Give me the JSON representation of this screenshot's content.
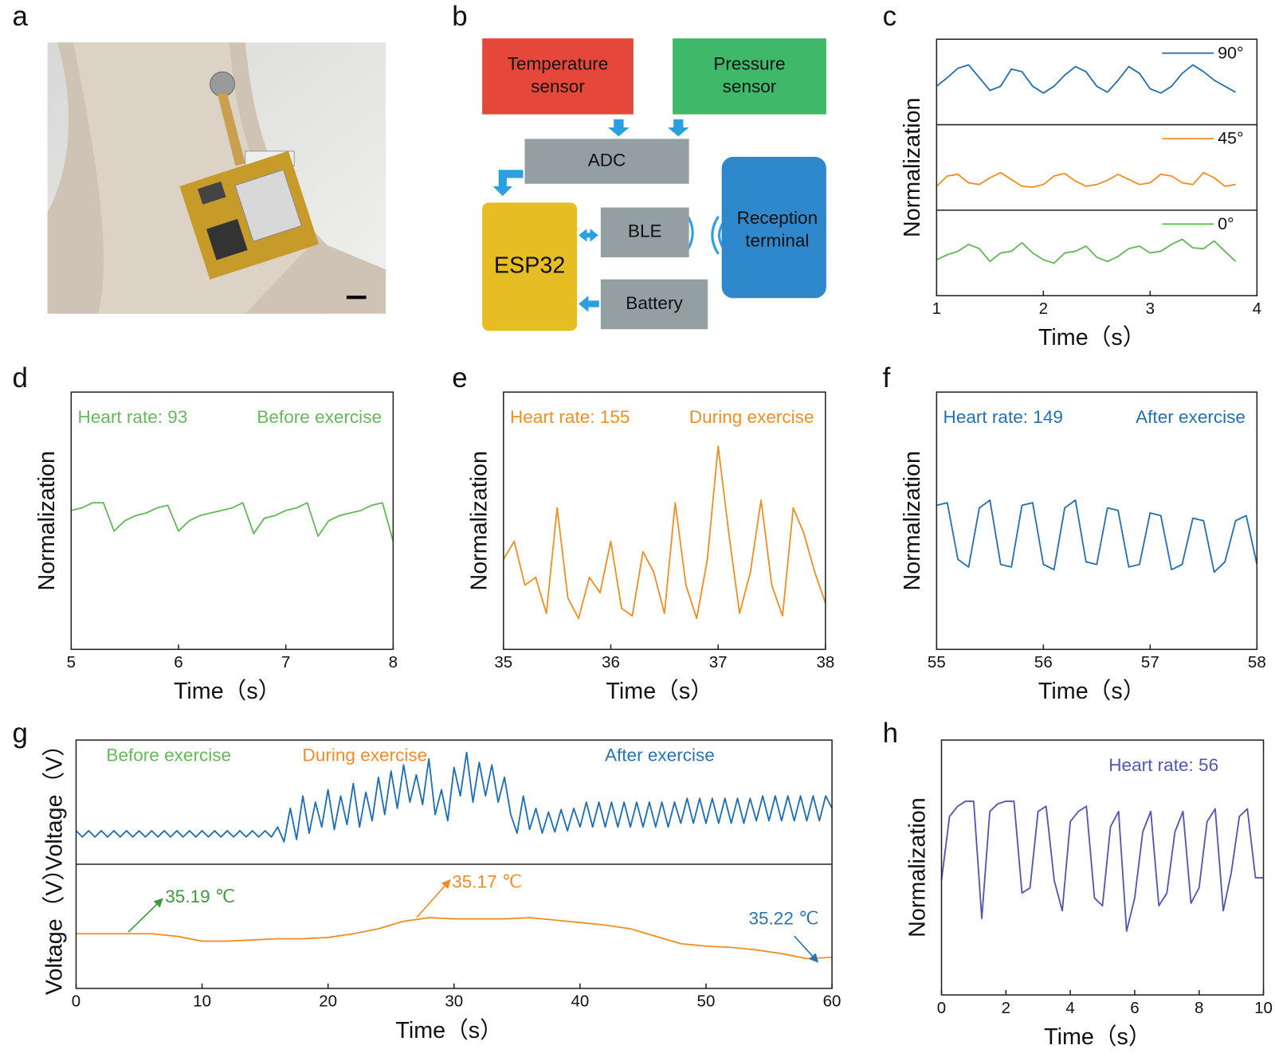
{
  "panel_labels": [
    "a",
    "b",
    "c",
    "d",
    "e",
    "f",
    "g",
    "h"
  ],
  "diagram": {
    "nodes": [
      {
        "lines": [
          "Temperature",
          "sensor"
        ]
      },
      {
        "lines": [
          "Pressure",
          "sensor"
        ]
      },
      {
        "lines": [
          "ADC"
        ]
      },
      {
        "lines": [
          "ESP32"
        ]
      },
      {
        "lines": [
          "BLE"
        ]
      },
      {
        "lines": [
          "Battery"
        ]
      },
      {
        "lines": [
          "Reception",
          "terminal"
        ]
      }
    ]
  },
  "chart_data": [
    {
      "type": "line",
      "ylabel": "Normalization",
      "xlabel": "Time（s）",
      "xlim": [
        1,
        4
      ],
      "xticks": [
        1,
        2,
        3,
        4
      ],
      "legend": true,
      "x": [
        1.0,
        1.1,
        1.2,
        1.3,
        1.4,
        1.5,
        1.6,
        1.7,
        1.8,
        1.9,
        2.0,
        2.1,
        2.2,
        2.3,
        2.4,
        2.5,
        2.6,
        2.7,
        2.8,
        2.9,
        3.0,
        3.1,
        3.2,
        3.3,
        3.4,
        3.5,
        3.6,
        3.7,
        3.8
      ],
      "series": [
        {
          "name": "90°",
          "color": "#2572b2",
          "ylim": [
            0,
            1
          ],
          "values": [
            0.45,
            0.55,
            0.66,
            0.7,
            0.55,
            0.4,
            0.45,
            0.65,
            0.62,
            0.45,
            0.37,
            0.45,
            0.58,
            0.68,
            0.62,
            0.45,
            0.38,
            0.52,
            0.68,
            0.6,
            0.42,
            0.37,
            0.45,
            0.6,
            0.7,
            0.62,
            0.52,
            0.45,
            0.38
          ]
        },
        {
          "name": "45°",
          "color": "#ef8f25",
          "ylim": [
            0,
            1
          ],
          "values": [
            0.28,
            0.4,
            0.42,
            0.32,
            0.3,
            0.38,
            0.44,
            0.36,
            0.28,
            0.27,
            0.3,
            0.4,
            0.43,
            0.34,
            0.28,
            0.3,
            0.35,
            0.42,
            0.36,
            0.3,
            0.32,
            0.42,
            0.4,
            0.32,
            0.3,
            0.44,
            0.38,
            0.28,
            0.3
          ]
        },
        {
          "name": "0°",
          "color": "#66b85c",
          "ylim": [
            0,
            1
          ],
          "values": [
            0.42,
            0.48,
            0.52,
            0.6,
            0.55,
            0.4,
            0.5,
            0.52,
            0.62,
            0.5,
            0.42,
            0.38,
            0.5,
            0.52,
            0.58,
            0.45,
            0.4,
            0.46,
            0.55,
            0.58,
            0.5,
            0.52,
            0.6,
            0.66,
            0.56,
            0.55,
            0.64,
            0.52,
            0.4
          ]
        }
      ]
    },
    {
      "type": "line",
      "ylabel": "Normalization",
      "xlabel": "Time（s）",
      "xlim": [
        5,
        8
      ],
      "xticks": [
        5,
        6,
        7,
        8
      ],
      "ylim": [
        0,
        1
      ],
      "annotations": [
        "Heart rate: 93",
        "Before exercise"
      ],
      "x": [
        5.0,
        5.1,
        5.2,
        5.3,
        5.4,
        5.5,
        5.6,
        5.7,
        5.8,
        5.9,
        6.0,
        6.1,
        6.2,
        6.3,
        6.4,
        6.5,
        6.6,
        6.7,
        6.8,
        6.9,
        7.0,
        7.1,
        7.2,
        7.3,
        7.4,
        7.5,
        7.6,
        7.7,
        7.8,
        7.9,
        8.0
      ],
      "series": [
        {
          "color": "#66b85c",
          "values": [
            0.54,
            0.55,
            0.57,
            0.57,
            0.46,
            0.5,
            0.52,
            0.53,
            0.55,
            0.56,
            0.46,
            0.5,
            0.52,
            0.53,
            0.54,
            0.55,
            0.57,
            0.45,
            0.51,
            0.52,
            0.54,
            0.55,
            0.57,
            0.44,
            0.5,
            0.52,
            0.53,
            0.54,
            0.56,
            0.57,
            0.42
          ]
        }
      ]
    },
    {
      "type": "line",
      "ylabel": "Normalization",
      "xlabel": "Time（s）",
      "xlim": [
        35,
        38
      ],
      "xticks": [
        35,
        36,
        37,
        38
      ],
      "ylim": [
        0,
        1
      ],
      "annotations": [
        "Heart rate: 155",
        "During exercise"
      ],
      "x": [
        35.0,
        35.1,
        35.2,
        35.3,
        35.4,
        35.5,
        35.6,
        35.7,
        35.8,
        35.9,
        36.0,
        36.1,
        36.2,
        36.3,
        36.4,
        36.5,
        36.6,
        36.7,
        36.8,
        36.9,
        37.0,
        37.1,
        37.2,
        37.3,
        37.4,
        37.5,
        37.6,
        37.7,
        37.8,
        37.9,
        38.0
      ],
      "series": [
        {
          "color": "#ef8f25",
          "values": [
            0.35,
            0.42,
            0.25,
            0.28,
            0.14,
            0.55,
            0.2,
            0.12,
            0.28,
            0.22,
            0.42,
            0.16,
            0.13,
            0.38,
            0.3,
            0.14,
            0.57,
            0.25,
            0.12,
            0.35,
            0.79,
            0.45,
            0.14,
            0.3,
            0.58,
            0.25,
            0.13,
            0.55,
            0.45,
            0.3,
            0.18
          ]
        }
      ]
    },
    {
      "type": "line",
      "ylabel": "Normalization",
      "xlabel": "Time（s）",
      "xlim": [
        55,
        58
      ],
      "xticks": [
        55,
        56,
        57,
        58
      ],
      "ylim": [
        0,
        1
      ],
      "annotations": [
        "Heart rate: 149",
        "After exercise"
      ],
      "x": [
        55.0,
        55.1,
        55.2,
        55.3,
        55.4,
        55.5,
        55.6,
        55.7,
        55.8,
        55.9,
        56.0,
        56.1,
        56.2,
        56.3,
        56.4,
        56.5,
        56.6,
        56.7,
        56.8,
        56.9,
        57.0,
        57.1,
        57.2,
        57.3,
        57.4,
        57.5,
        57.6,
        57.7,
        57.8,
        57.9,
        58.0
      ],
      "series": [
        {
          "color": "#2572b2",
          "values": [
            0.56,
            0.57,
            0.35,
            0.32,
            0.55,
            0.58,
            0.33,
            0.32,
            0.56,
            0.57,
            0.33,
            0.31,
            0.55,
            0.58,
            0.34,
            0.33,
            0.55,
            0.54,
            0.32,
            0.33,
            0.53,
            0.52,
            0.31,
            0.33,
            0.51,
            0.5,
            0.3,
            0.34,
            0.5,
            0.52,
            0.33
          ]
        }
      ]
    },
    {
      "type": "line",
      "xlabel": "Time（s）",
      "xlim": [
        0,
        60
      ],
      "xticks": [
        0,
        10,
        20,
        30,
        40,
        50,
        60
      ],
      "annotations": [
        {
          "text": "Before exercise",
          "color": "#66b85c"
        },
        {
          "text": "During exercise",
          "color": "#ee8c2a"
        },
        {
          "text": "After exercise",
          "color": "#2a74b4"
        },
        {
          "text": "35.19 ℃",
          "color": "#3d9a3d"
        },
        {
          "text": "35.17 ℃",
          "color": "#ee8c2a"
        },
        {
          "text": "35.22 ℃",
          "color": "#2a74b4"
        }
      ],
      "series": [
        {
          "ylabel": "Voltage（V）",
          "color": "#1f6fb5",
          "ylim": [
            0,
            1
          ],
          "x": [
            0,
            0.5,
            1,
            1.5,
            2,
            2.5,
            3,
            3.5,
            4,
            4.5,
            5,
            5.5,
            6,
            6.5,
            7,
            7.5,
            8,
            8.5,
            9,
            9.5,
            10,
            10.5,
            11,
            11.5,
            12,
            12.5,
            13,
            13.5,
            14,
            14.5,
            15,
            15.5,
            16,
            16.5,
            17,
            17.5,
            18,
            18.5,
            19,
            19.5,
            20,
            20.5,
            21,
            21.5,
            22,
            22.5,
            23,
            23.5,
            24,
            24.5,
            25,
            25.5,
            26,
            26.5,
            27,
            27.5,
            28,
            28.5,
            29,
            29.5,
            30,
            30.5,
            31,
            31.5,
            32,
            32.5,
            33,
            33.5,
            34,
            34.5,
            35,
            35.5,
            36,
            36.5,
            37,
            37.5,
            38,
            38.5,
            39,
            39.5,
            40,
            40.5,
            41,
            41.5,
            42,
            42.5,
            43,
            43.5,
            44,
            44.5,
            45,
            45.5,
            46,
            46.5,
            47,
            47.5,
            48,
            48.5,
            49,
            49.5,
            50,
            50.5,
            51,
            51.5,
            52,
            52.5,
            53,
            53.5,
            54,
            54.5,
            55,
            55.5,
            56,
            56.5,
            57,
            57.5,
            58,
            58.5,
            59,
            59.5,
            60
          ],
          "values": [
            0.27,
            0.22,
            0.27,
            0.22,
            0.27,
            0.22,
            0.27,
            0.22,
            0.27,
            0.22,
            0.27,
            0.22,
            0.27,
            0.22,
            0.27,
            0.22,
            0.27,
            0.22,
            0.27,
            0.22,
            0.27,
            0.22,
            0.27,
            0.22,
            0.27,
            0.22,
            0.27,
            0.22,
            0.27,
            0.22,
            0.27,
            0.22,
            0.3,
            0.18,
            0.45,
            0.2,
            0.55,
            0.25,
            0.5,
            0.3,
            0.6,
            0.28,
            0.55,
            0.32,
            0.65,
            0.3,
            0.58,
            0.35,
            0.7,
            0.4,
            0.75,
            0.45,
            0.8,
            0.5,
            0.72,
            0.48,
            0.85,
            0.4,
            0.6,
            0.35,
            0.78,
            0.55,
            0.9,
            0.5,
            0.82,
            0.55,
            0.8,
            0.5,
            0.7,
            0.4,
            0.25,
            0.55,
            0.28,
            0.45,
            0.25,
            0.42,
            0.26,
            0.44,
            0.27,
            0.45,
            0.3,
            0.5,
            0.3,
            0.5,
            0.3,
            0.5,
            0.3,
            0.5,
            0.3,
            0.5,
            0.3,
            0.5,
            0.3,
            0.5,
            0.3,
            0.5,
            0.33,
            0.53,
            0.33,
            0.53,
            0.33,
            0.53,
            0.33,
            0.53,
            0.33,
            0.53,
            0.33,
            0.53,
            0.35,
            0.55,
            0.35,
            0.55,
            0.35,
            0.55,
            0.35,
            0.55,
            0.35,
            0.55,
            0.35,
            0.55,
            0.45
          ]
        },
        {
          "ylabel": "Voltage（V）",
          "color": "#ef8f25",
          "ylim": [
            0,
            1
          ],
          "x": [
            0,
            2,
            4,
            6,
            8,
            10,
            12,
            14,
            16,
            18,
            20,
            22,
            24,
            26,
            28,
            30,
            32,
            34,
            36,
            38,
            40,
            42,
            44,
            46,
            48,
            50,
            52,
            54,
            56,
            58,
            60
          ],
          "values": [
            0.44,
            0.44,
            0.44,
            0.44,
            0.42,
            0.38,
            0.38,
            0.39,
            0.4,
            0.4,
            0.41,
            0.44,
            0.48,
            0.54,
            0.57,
            0.56,
            0.56,
            0.56,
            0.57,
            0.55,
            0.53,
            0.51,
            0.48,
            0.42,
            0.36,
            0.34,
            0.33,
            0.31,
            0.28,
            0.24,
            0.25
          ]
        }
      ]
    },
    {
      "type": "line",
      "ylabel": "Normalization",
      "xlabel": "Time（s）",
      "xlim": [
        0,
        10
      ],
      "xticks": [
        0,
        2,
        4,
        6,
        8,
        10
      ],
      "ylim": [
        0,
        1
      ],
      "annotations": [
        "Heart rate: 56"
      ],
      "x": [
        0,
        0.25,
        0.5,
        0.75,
        1,
        1.25,
        1.5,
        1.75,
        2,
        2.25,
        2.5,
        2.75,
        3,
        3.25,
        3.5,
        3.75,
        4,
        4.25,
        4.5,
        4.75,
        5,
        5.25,
        5.5,
        5.75,
        6,
        6.25,
        6.5,
        6.75,
        7,
        7.25,
        7.5,
        7.75,
        8,
        8.25,
        8.5,
        8.75,
        9,
        9.25,
        9.5,
        9.75,
        10
      ],
      "series": [
        {
          "color": "#5258b0",
          "values": [
            0.45,
            0.7,
            0.74,
            0.76,
            0.76,
            0.3,
            0.72,
            0.75,
            0.76,
            0.76,
            0.4,
            0.42,
            0.72,
            0.74,
            0.45,
            0.33,
            0.68,
            0.72,
            0.74,
            0.38,
            0.35,
            0.66,
            0.72,
            0.25,
            0.38,
            0.64,
            0.72,
            0.35,
            0.4,
            0.64,
            0.72,
            0.36,
            0.42,
            0.68,
            0.73,
            0.33,
            0.48,
            0.7,
            0.73,
            0.46,
            0.46
          ]
        }
      ]
    }
  ]
}
